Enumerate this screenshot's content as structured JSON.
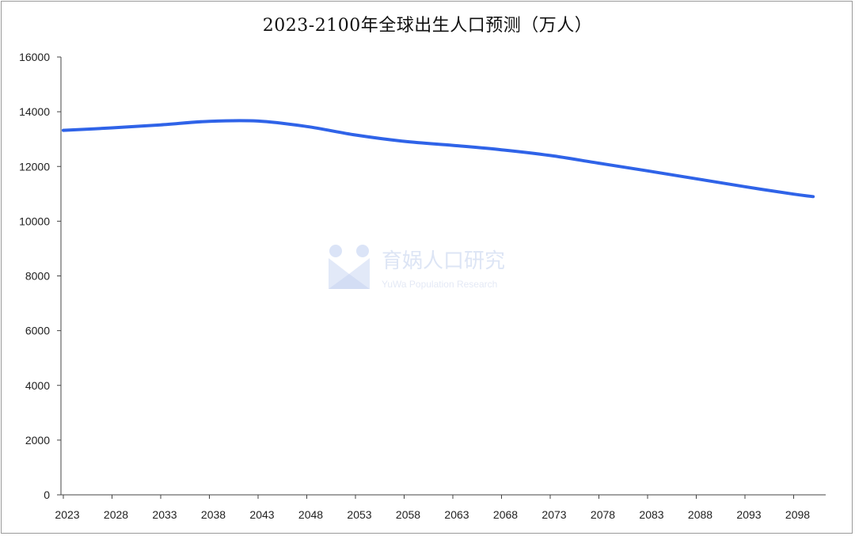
{
  "chart_data": {
    "type": "line",
    "title": "2023-2100年全球出生人口预测（万人）",
    "xlabel": "",
    "ylabel": "",
    "ylim": [
      0,
      16000
    ],
    "y_ticks": [
      0,
      2000,
      4000,
      6000,
      8000,
      10000,
      12000,
      14000,
      16000
    ],
    "x_ticks": [
      "2023",
      "2028",
      "2033",
      "2038",
      "2043",
      "2048",
      "2053",
      "2058",
      "2063",
      "2068",
      "2073",
      "2078",
      "2083",
      "2088",
      "2093",
      "2098"
    ],
    "x": [
      2023,
      2028,
      2033,
      2038,
      2043,
      2048,
      2053,
      2058,
      2063,
      2068,
      2073,
      2078,
      2083,
      2088,
      2093,
      2098,
      2100
    ],
    "series": [
      {
        "values": [
          13320,
          13410,
          13520,
          13650,
          13660,
          13460,
          13150,
          12920,
          12770,
          12610,
          12400,
          12120,
          11840,
          11550,
          11260,
          10990,
          10900
        ]
      }
    ],
    "grid": false,
    "legend": "none",
    "line_color": "#2f63e8"
  },
  "watermark": {
    "text": "育娲人口研究",
    "subtext": "YuWa Population Research"
  }
}
